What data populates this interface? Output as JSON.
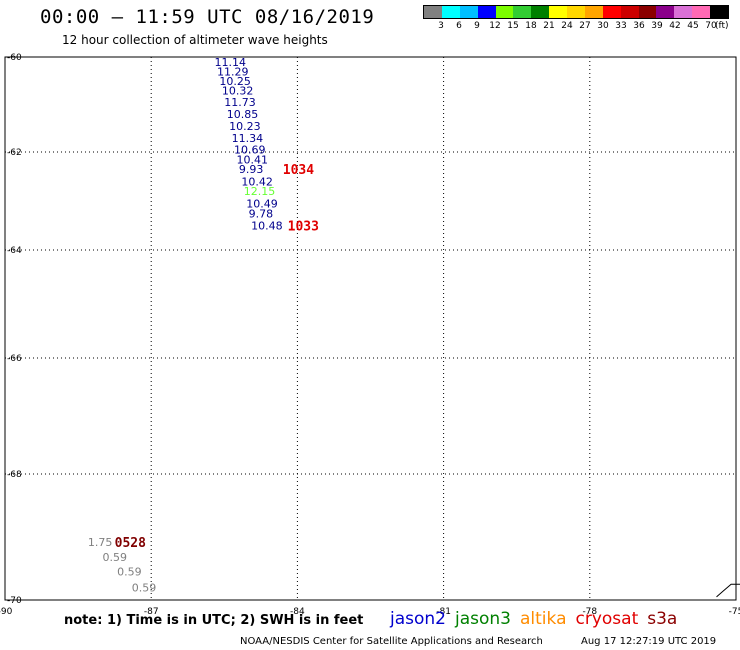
{
  "header": {
    "title": "00:00 – 11:59 UTC 08/16/2019",
    "subtitle": "12 hour collection of altimeter wave heights"
  },
  "colorbar": {
    "unit": "(ft)",
    "colors": [
      "#808080",
      "#00ffff",
      "#00bfff",
      "#0000ff",
      "#7cfc00",
      "#32cd32",
      "#008000",
      "#ffff00",
      "#ffd700",
      "#ffa500",
      "#ff0000",
      "#cd0000",
      "#8b0000",
      "#8b008b",
      "#da70d6",
      "#ff69b4",
      "#000000"
    ],
    "labels": [
      "3",
      "6",
      "9",
      "12",
      "15",
      "18",
      "21",
      "24",
      "27",
      "30",
      "33",
      "36",
      "39",
      "42",
      "45",
      "70"
    ]
  },
  "map": {
    "lat_labels": [
      "-60",
      "-62",
      "-64",
      "-66",
      "-68",
      "-70"
    ],
    "lon_labels": [
      "-90",
      "-87",
      "-84",
      "-81",
      "-78",
      "-75"
    ],
    "lat_values": [
      -60,
      -62,
      -64,
      -66,
      -68,
      -70
    ],
    "lon_values": [
      -90,
      -87,
      -84,
      -81,
      -78,
      -75
    ],
    "extent": {
      "lon_min": -90,
      "lon_max": -75,
      "lat_min": -70,
      "lat_max": -60
    }
  },
  "observations": [
    {
      "text": "11.14",
      "color": "#00008b",
      "lon": -85.7,
      "lat": -60.1
    },
    {
      "text": "11.29",
      "color": "#00008b",
      "lon": -85.65,
      "lat": -60.3
    },
    {
      "text": "10.25",
      "color": "#00008b",
      "lon": -85.6,
      "lat": -60.5
    },
    {
      "text": "10.32",
      "color": "#00008b",
      "lon": -85.55,
      "lat": -60.7
    },
    {
      "text": "11.73",
      "color": "#00008b",
      "lon": -85.5,
      "lat": -60.95
    },
    {
      "text": "10.85",
      "color": "#00008b",
      "lon": -85.45,
      "lat": -61.2
    },
    {
      "text": "10.23",
      "color": "#00008b",
      "lon": -85.4,
      "lat": -61.45
    },
    {
      "text": "11.34",
      "color": "#00008b",
      "lon": -85.35,
      "lat": -61.7
    },
    {
      "text": "10.69",
      "color": "#00008b",
      "lon": -85.3,
      "lat": -61.95
    },
    {
      "text": "10.41",
      "color": "#00008b",
      "lon": -85.25,
      "lat": -62.15
    },
    {
      "text": "9.93",
      "color": "#00008b",
      "lon": -85.2,
      "lat": -62.35
    },
    {
      "text": "10.42",
      "color": "#00008b",
      "lon": -85.15,
      "lat": -62.6
    },
    {
      "text": "12.15",
      "color": "#66ff33",
      "lon": -85.1,
      "lat": -62.8
    },
    {
      "text": "10.49",
      "color": "#00008b",
      "lon": -85.05,
      "lat": -63.05
    },
    {
      "text": "9.78",
      "color": "#00008b",
      "lon": -85.0,
      "lat": -63.25
    },
    {
      "text": "10.48",
      "color": "#00008b",
      "lon": -84.95,
      "lat": -63.5
    },
    {
      "text": "1.75",
      "color": "#808080",
      "lon": -88.3,
      "lat": -69.08
    },
    {
      "text": "0.59",
      "color": "#808080",
      "lon": -88.0,
      "lat": -69.32
    },
    {
      "text": "0.59",
      "color": "#808080",
      "lon": -87.7,
      "lat": -69.55
    },
    {
      "text": "0.59",
      "color": "#808080",
      "lon": -87.4,
      "lat": -69.8
    }
  ],
  "time_labels": [
    {
      "text": "1034",
      "color": "#e00000",
      "lon": -84.3,
      "lat": -62.35
    },
    {
      "text": "1033",
      "color": "#e00000",
      "lon": -84.2,
      "lat": -63.5
    },
    {
      "text": "0528",
      "color": "#800000",
      "lon": -87.75,
      "lat": -69.08
    }
  ],
  "coastline": [
    [
      -75.4,
      -69.95
    ],
    [
      -75.25,
      -69.85
    ],
    [
      -75.1,
      -69.75
    ],
    [
      -74.8,
      -69.75
    ],
    [
      -74.6,
      -69.72
    ],
    [
      -74.45,
      -69.72
    ]
  ],
  "footnote": "note: 1) Time is in UTC; 2) SWH is in feet",
  "legend": [
    {
      "name": "jason2",
      "color": "#0000cd"
    },
    {
      "name": "jason3",
      "color": "#008000"
    },
    {
      "name": "altika",
      "color": "#ff8c00"
    },
    {
      "name": "cryosat",
      "color": "#e00000"
    },
    {
      "name": "s3a",
      "color": "#8b0000"
    }
  ],
  "credit": "NOAA/NESDIS Center for Satellite Applications and Research",
  "timestamp": "Aug 17 12:27:19 UTC 2019"
}
